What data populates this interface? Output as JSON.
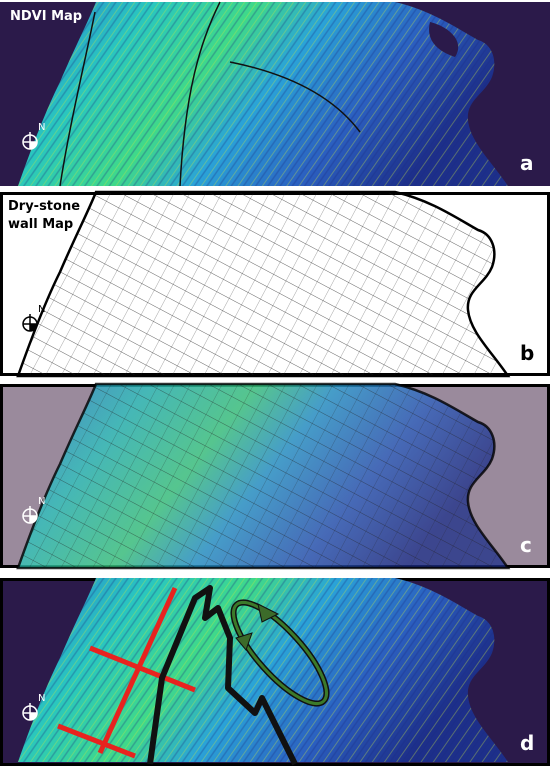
{
  "panels": [
    {
      "title": [
        "NDVI Map"
      ],
      "letter": "a",
      "north": "N"
    },
    {
      "title": [
        "Dry-stone",
        "wall Map"
      ],
      "letter": "b",
      "north": "N"
    },
    {
      "letter": "c",
      "north": "N"
    },
    {
      "letter": "d",
      "north": "N"
    }
  ]
}
